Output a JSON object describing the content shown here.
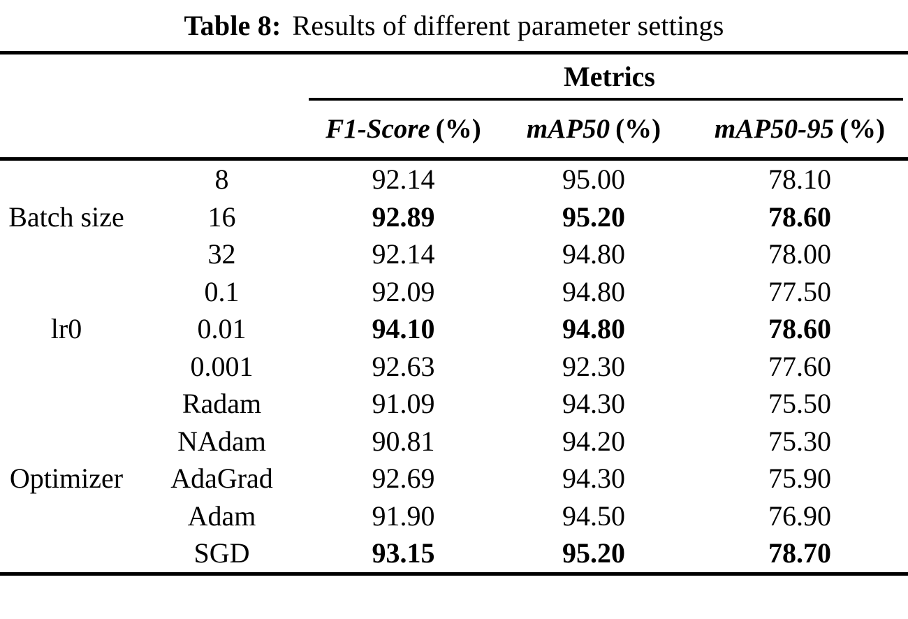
{
  "caption": {
    "label": "Table 8:",
    "text": "Results of different parameter settings"
  },
  "table": {
    "metrics_header": "Metrics",
    "columns": [
      {
        "name": "F1-Score",
        "unit": "(%)"
      },
      {
        "name": "mAP50",
        "unit": "(%)"
      },
      {
        "name": "mAP50-95",
        "unit": "(%)"
      }
    ],
    "groups": [
      {
        "name": "Batch size",
        "rows": [
          {
            "setting": "8",
            "f1": "92.14",
            "map50": "95.00",
            "map50_95": "78.10",
            "bold": false
          },
          {
            "setting": "16",
            "f1": "92.89",
            "map50": "95.20",
            "map50_95": "78.60",
            "bold": true
          },
          {
            "setting": "32",
            "f1": "92.14",
            "map50": "94.80",
            "map50_95": "78.00",
            "bold": false
          }
        ]
      },
      {
        "name": "lr0",
        "rows": [
          {
            "setting": "0.1",
            "f1": "92.09",
            "map50": "94.80",
            "map50_95": "77.50",
            "bold": false
          },
          {
            "setting": "0.01",
            "f1": "94.10",
            "map50": "94.80",
            "map50_95": "78.60",
            "bold": true
          },
          {
            "setting": "0.001",
            "f1": "92.63",
            "map50": "92.30",
            "map50_95": "77.60",
            "bold": false
          }
        ]
      },
      {
        "name": "Optimizer",
        "rows": [
          {
            "setting": "Radam",
            "f1": "91.09",
            "map50": "94.30",
            "map50_95": "75.50",
            "bold": false
          },
          {
            "setting": "NAdam",
            "f1": "90.81",
            "map50": "94.20",
            "map50_95": "75.30",
            "bold": false
          },
          {
            "setting": "AdaGrad",
            "f1": "92.69",
            "map50": "94.30",
            "map50_95": "75.90",
            "bold": false
          },
          {
            "setting": "Adam",
            "f1": "91.90",
            "map50": "94.50",
            "map50_95": "76.90",
            "bold": false
          },
          {
            "setting": "SGD",
            "f1": "93.15",
            "map50": "95.20",
            "map50_95": "78.70",
            "bold": true
          }
        ]
      }
    ]
  }
}
